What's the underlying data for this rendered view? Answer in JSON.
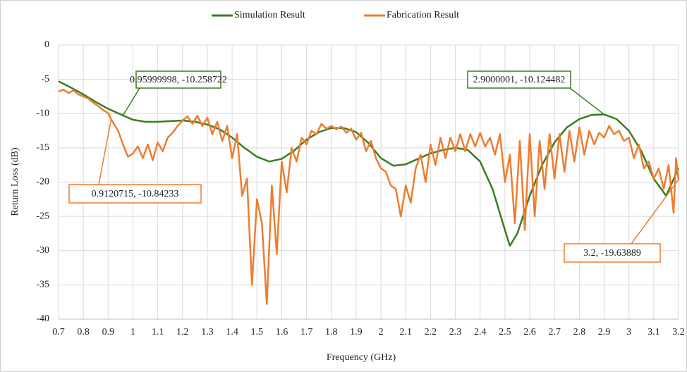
{
  "chart_data": {
    "type": "line",
    "x_label": "Frequency (GHz)",
    "y_label": "Return Loss (dB)",
    "xlim": [
      0.7,
      3.2
    ],
    "xticks": [
      0.7,
      0.8,
      0.9,
      1,
      1.1,
      1.2,
      1.3,
      1.4,
      1.5,
      1.6,
      1.7,
      1.8,
      1.9,
      2,
      2.1,
      2.2,
      2.3,
      2.4,
      2.5,
      2.6,
      2.7,
      2.8,
      2.9,
      3,
      3.1,
      3.2
    ],
    "ylim": [
      -40,
      0
    ],
    "yticks": [
      0,
      -5,
      -10,
      -15,
      -20,
      -25,
      -30,
      -35,
      -40
    ],
    "grid": true,
    "legend": "top",
    "series": [
      {
        "name": "Simulation Result",
        "color": "#3a7d22",
        "x": [
          0.7,
          0.75,
          0.8,
          0.85,
          0.9,
          0.96,
          1.0,
          1.05,
          1.1,
          1.15,
          1.2,
          1.25,
          1.3,
          1.35,
          1.4,
          1.45,
          1.5,
          1.55,
          1.6,
          1.65,
          1.7,
          1.75,
          1.8,
          1.85,
          1.9,
          1.95,
          2.0,
          2.05,
          2.1,
          2.15,
          2.2,
          2.25,
          2.3,
          2.35,
          2.4,
          2.45,
          2.5,
          2.52,
          2.55,
          2.6,
          2.65,
          2.7,
          2.75,
          2.8,
          2.85,
          2.9,
          2.95,
          3.0,
          3.05,
          3.1,
          3.15,
          3.2
        ],
        "values": [
          -5.3,
          -6.2,
          -7.2,
          -8.3,
          -9.3,
          -10.26,
          -10.9,
          -11.2,
          -11.2,
          -11.1,
          -11.0,
          -11.2,
          -11.6,
          -12.3,
          -13.5,
          -15,
          -16.3,
          -17,
          -16.6,
          -15.4,
          -13.8,
          -12.7,
          -12.1,
          -12.1,
          -12.7,
          -14.3,
          -16.5,
          -17.6,
          -17.4,
          -16.6,
          -15.8,
          -15.3,
          -15.0,
          -15.3,
          -17,
          -21,
          -27,
          -29.3,
          -27.5,
          -22,
          -17.5,
          -14.2,
          -12,
          -10.8,
          -10.2,
          -10.12,
          -10.8,
          -12.5,
          -15.5,
          -19.5,
          -22,
          -18
        ]
      },
      {
        "name": "Fabrication Result",
        "color": "#ed7d31",
        "x": [
          0.7,
          0.72,
          0.74,
          0.76,
          0.78,
          0.8,
          0.82,
          0.84,
          0.86,
          0.88,
          0.9,
          0.912,
          0.94,
          0.96,
          0.98,
          1.0,
          1.02,
          1.04,
          1.06,
          1.08,
          1.1,
          1.12,
          1.14,
          1.16,
          1.18,
          1.2,
          1.22,
          1.24,
          1.26,
          1.28,
          1.3,
          1.32,
          1.34,
          1.36,
          1.38,
          1.4,
          1.42,
          1.44,
          1.46,
          1.48,
          1.5,
          1.52,
          1.54,
          1.56,
          1.58,
          1.6,
          1.62,
          1.64,
          1.66,
          1.68,
          1.7,
          1.72,
          1.74,
          1.76,
          1.78,
          1.8,
          1.82,
          1.84,
          1.86,
          1.88,
          1.9,
          1.92,
          1.94,
          1.96,
          1.98,
          2.0,
          2.02,
          2.04,
          2.06,
          2.08,
          2.1,
          2.12,
          2.14,
          2.16,
          2.18,
          2.2,
          2.22,
          2.24,
          2.26,
          2.28,
          2.3,
          2.32,
          2.34,
          2.36,
          2.38,
          2.4,
          2.42,
          2.44,
          2.46,
          2.48,
          2.5,
          2.52,
          2.54,
          2.56,
          2.58,
          2.6,
          2.62,
          2.64,
          2.66,
          2.68,
          2.7,
          2.72,
          2.74,
          2.76,
          2.78,
          2.8,
          2.82,
          2.84,
          2.86,
          2.88,
          2.9,
          2.92,
          2.94,
          2.96,
          2.98,
          3.0,
          3.02,
          3.04,
          3.06,
          3.08,
          3.1,
          3.12,
          3.14,
          3.16,
          3.18,
          3.19,
          3.2
        ],
        "values": [
          -6.8,
          -6.5,
          -7,
          -6.6,
          -7.2,
          -7.5,
          -7.8,
          -8.4,
          -8.9,
          -9.5,
          -9.9,
          -10.84,
          -12.5,
          -14.5,
          -16.3,
          -15.8,
          -14.8,
          -16.5,
          -14.5,
          -16.8,
          -14.2,
          -15.5,
          -13.5,
          -12.8,
          -11.8,
          -11,
          -10.4,
          -11.5,
          -10.3,
          -11.8,
          -10.6,
          -13,
          -11.2,
          -14,
          -11.8,
          -16.5,
          -13,
          -22,
          -19.5,
          -35,
          -22.5,
          -26,
          -37.8,
          -20.5,
          -30.5,
          -17,
          -21.5,
          -15,
          -17,
          -13.5,
          -14.5,
          -12.5,
          -13,
          -11.5,
          -12.2,
          -11.8,
          -12.3,
          -11.9,
          -12.8,
          -12.2,
          -13.8,
          -12.8,
          -15.5,
          -14,
          -16.5,
          -18,
          -18.5,
          -20.5,
          -21,
          -25,
          -20.5,
          -23,
          -18,
          -16,
          -20,
          -14.5,
          -17.5,
          -13.5,
          -16.5,
          -13.5,
          -15.5,
          -13,
          -15.5,
          -13,
          -14.8,
          -12.8,
          -14.8,
          -13.5,
          -16,
          -13,
          -20,
          -16,
          -26,
          -14,
          -27,
          -13,
          -25,
          -14,
          -21,
          -13,
          -19.5,
          -13,
          -18.5,
          -12.5,
          -17,
          -12,
          -16,
          -12.5,
          -14.5,
          -12.8,
          -13.5,
          -11.8,
          -13,
          -12.5,
          -14,
          -13.5,
          -16.5,
          -14.5,
          -18,
          -17,
          -19.5,
          -18,
          -21,
          -17.5,
          -24.5,
          -16.5,
          -19.64
        ]
      }
    ],
    "annotations": [
      {
        "label": "0.95999998, -10.258722",
        "x": 0.95999998,
        "y": -10.258722,
        "series": 0
      },
      {
        "label": "0.9120715, -10.84233",
        "x": 0.9120715,
        "y": -10.84233,
        "series": 1
      },
      {
        "label": "2.9000001, -10.124482",
        "x": 2.9000001,
        "y": -10.124482,
        "series": 0
      },
      {
        "label": "3.2, -19.63889",
        "x": 3.2,
        "y": -19.63889,
        "series": 1
      }
    ]
  }
}
